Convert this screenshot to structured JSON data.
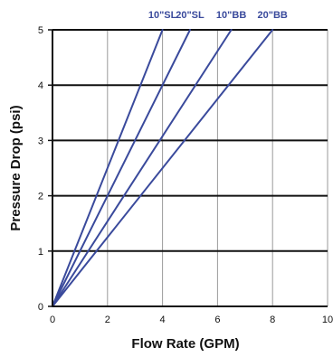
{
  "chart_data": {
    "type": "line",
    "title": "",
    "xlabel": "Flow Rate (GPM)",
    "ylabel": "Pressure Drop (psi)",
    "xlim": [
      0,
      10
    ],
    "ylim": [
      0,
      5
    ],
    "x_ticks": [
      0,
      2,
      4,
      6,
      8,
      10
    ],
    "y_ticks": [
      0,
      1,
      2,
      3,
      4,
      5
    ],
    "grid": true,
    "legend": "top",
    "line_color": "#3a4a9c",
    "series": [
      {
        "name": "10\"SL",
        "x": [
          0,
          4.0
        ],
        "y": [
          0,
          5
        ]
      },
      {
        "name": "20\"SL",
        "x": [
          0,
          5.0
        ],
        "y": [
          0,
          5
        ]
      },
      {
        "name": "10\"BB",
        "x": [
          0,
          6.5
        ],
        "y": [
          0,
          5
        ]
      },
      {
        "name": "20\"BB",
        "x": [
          0,
          8.0
        ],
        "y": [
          0,
          5
        ]
      }
    ]
  }
}
